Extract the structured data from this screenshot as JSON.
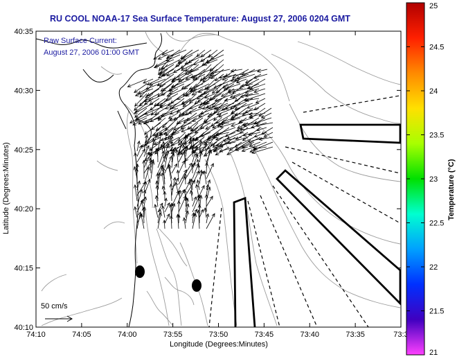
{
  "title": "RU COOL  NOAA-17  Sea Surface Temperature:  August 27, 2006 0204 GMT",
  "inset": {
    "line1": "Raw Surface Current:",
    "line2": "August 27, 2006 01:00 GMT"
  },
  "scale_label": "50 cm/s",
  "x_axis": {
    "label": "Longitude (Degrees:Minutes)",
    "ticks": [
      "74:10",
      "74:05",
      "74:00",
      "73:55",
      "73:50",
      "73:45",
      "73:40",
      "73:35",
      "73:3"
    ]
  },
  "y_axis": {
    "label": "Latitude (Degrees:Minutes)",
    "ticks": [
      "40:35",
      "40:30",
      "40:25",
      "40:20",
      "40:15",
      "40:10"
    ]
  },
  "colorbar": {
    "label": "Temperature (°C)",
    "ticks": [
      "25",
      "24.5",
      "24",
      "23.5",
      "23",
      "22.5",
      "22",
      "21.5",
      "21"
    ],
    "colors": [
      "#b00000",
      "#ff2000",
      "#ff8a00",
      "#ffe000",
      "#a8ff00",
      "#00e000",
      "#00ffd0",
      "#00a0ff",
      "#0030ff",
      "#4000c0",
      "#ff40ff"
    ]
  }
}
